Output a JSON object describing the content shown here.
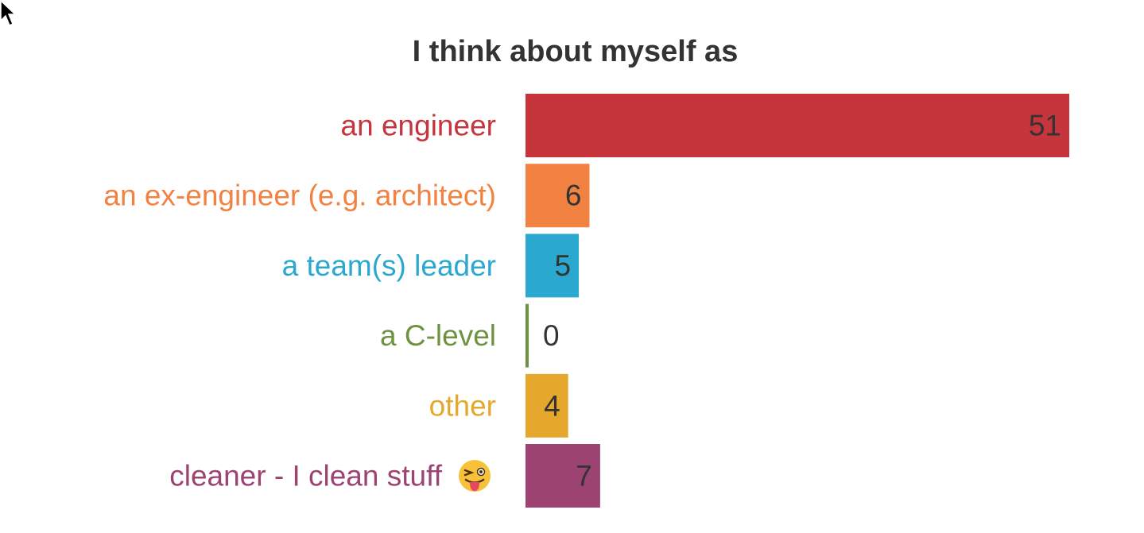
{
  "chart_data": {
    "type": "bar",
    "orientation": "horizontal",
    "title": "I think about myself as",
    "xlabel": "",
    "ylabel": "",
    "categories": [
      "an engineer",
      "an ex-engineer (e.g. architect)",
      "a team(s) leader",
      "a C-level",
      "other",
      "cleaner - I clean stuff"
    ],
    "values": [
      51,
      6,
      5,
      0,
      4,
      7
    ],
    "colors": [
      "#c6343c",
      "#f28241",
      "#2aa8cf",
      "#6f9241",
      "#e6a82c",
      "#9c4372"
    ],
    "data_labels": true,
    "grid": false,
    "legend": "none"
  },
  "cursor_icon": "mouse-pointer-icon",
  "emoji_icon": "winking-face-with-tongue-icon"
}
